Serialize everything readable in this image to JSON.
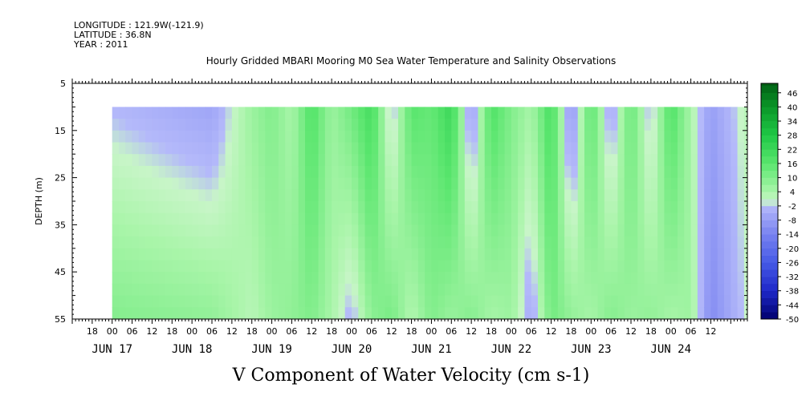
{
  "header": {
    "longitude": "LONGITUDE : 121.9W(-121.9)",
    "latitude": "LATITUDE : 36.8N",
    "year": "YEAR : 2011"
  },
  "chart_data": {
    "type": "heatmap",
    "title": "Hourly Gridded MBARI Mooring M0 Sea Water Temperature and Salinity Observations",
    "xlabel": "V Component of Water Velocity (cm s-1)",
    "ylabel": "DEPTH (m)",
    "y_reversed": true,
    "ylim": [
      55,
      5
    ],
    "y_ticks": [
      5,
      15,
      25,
      35,
      45,
      55
    ],
    "data_depth_range": [
      10,
      55
    ],
    "x_range_hours": [
      "2011-06-16 12:00",
      "2011-06-24 23:00"
    ],
    "data_time_range": [
      "2011-06-17 00:00",
      "2011-06-24 23:00"
    ],
    "x_hour_ticks": [
      "18",
      "00",
      "06",
      "12",
      "18",
      "00",
      "06",
      "12",
      "18",
      "00",
      "06",
      "12",
      "18",
      "00",
      "06",
      "12",
      "18",
      "00",
      "06",
      "12",
      "18",
      "00",
      "06",
      "12",
      "18",
      "00",
      "06",
      "12",
      "18",
      "00",
      "06",
      "12"
    ],
    "x_hour_tick_times": [
      "2011-06-16 18:00",
      "2011-06-17 00:00",
      "2011-06-17 06:00",
      "2011-06-17 12:00",
      "2011-06-17 18:00",
      "2011-06-18 00:00",
      "2011-06-18 06:00",
      "2011-06-18 12:00",
      "2011-06-18 18:00",
      "2011-06-19 00:00",
      "2011-06-19 06:00",
      "2011-06-19 12:00",
      "2011-06-19 18:00",
      "2011-06-20 00:00",
      "2011-06-20 06:00",
      "2011-06-20 12:00",
      "2011-06-20 18:00",
      "2011-06-21 00:00",
      "2011-06-21 06:00",
      "2011-06-21 12:00",
      "2011-06-21 18:00",
      "2011-06-22 00:00",
      "2011-06-22 06:00",
      "2011-06-22 12:00",
      "2011-06-22 18:00",
      "2011-06-23 00:00",
      "2011-06-23 06:00",
      "2011-06-23 12:00",
      "2011-06-23 18:00",
      "2011-06-24 00:00",
      "2011-06-24 06:00",
      "2011-06-24 12:00"
    ],
    "x_date_labels": [
      {
        "label": "JUN 17",
        "time": "2011-06-17 00:00"
      },
      {
        "label": "JUN 18",
        "time": "2011-06-18 00:00"
      },
      {
        "label": "JUN 19",
        "time": "2011-06-19 00:00"
      },
      {
        "label": "JUN 20",
        "time": "2011-06-20 00:00"
      },
      {
        "label": "JUN 21",
        "time": "2011-06-21 00:00"
      },
      {
        "label": "JUN 22",
        "time": "2011-06-22 00:00"
      },
      {
        "label": "JUN 23",
        "time": "2011-06-23 00:00"
      },
      {
        "label": "JUN 24",
        "time": "2011-06-24 00:00"
      }
    ],
    "colorbar": {
      "min": -50,
      "max": 50,
      "step": 3,
      "labels": [
        46,
        40,
        34,
        28,
        22,
        16,
        10,
        4,
        -2,
        -8,
        -14,
        -20,
        -26,
        -32,
        -38,
        -44,
        -50
      ]
    },
    "v_velocity_profiles": [
      {
        "time": "2011-06-17 00:00",
        "surface": -2,
        "bottom": 10
      },
      {
        "time": "2011-06-18 06:00",
        "surface": -6,
        "bottom": 8
      },
      {
        "time": "2011-06-18 18:00",
        "surface": 6,
        "bottom": 2
      },
      {
        "time": "2011-06-19 00:00",
        "surface": 10,
        "bottom": 6
      },
      {
        "time": "2011-06-19 06:00",
        "surface": 4,
        "bottom": 8
      },
      {
        "time": "2011-06-19 12:00",
        "surface": 18,
        "bottom": 10
      },
      {
        "time": "2011-06-19 18:00",
        "surface": 6,
        "bottom": 4
      },
      {
        "time": "2011-06-20 00:00",
        "surface": 12,
        "bottom": -4
      },
      {
        "time": "2011-06-20 06:00",
        "surface": 20,
        "bottom": 8
      },
      {
        "time": "2011-06-20 12:00",
        "surface": -4,
        "bottom": 12
      },
      {
        "time": "2011-06-20 18:00",
        "surface": 16,
        "bottom": 2
      },
      {
        "time": "2011-06-21 00:00",
        "surface": 14,
        "bottom": 10
      },
      {
        "time": "2011-06-21 06:00",
        "surface": 22,
        "bottom": 6
      },
      {
        "time": "2011-06-21 12:00",
        "surface": -8,
        "bottom": 10
      },
      {
        "time": "2011-06-21 18:00",
        "surface": 18,
        "bottom": 4
      },
      {
        "time": "2011-06-22 00:00",
        "surface": 10,
        "bottom": 6
      },
      {
        "time": "2011-06-22 06:00",
        "surface": 4,
        "bottom": -6
      },
      {
        "time": "2011-06-22 12:00",
        "surface": 20,
        "bottom": 12
      },
      {
        "time": "2011-06-22 18:00",
        "surface": -10,
        "bottom": 8
      },
      {
        "time": "2011-06-23 00:00",
        "surface": 16,
        "bottom": 4
      },
      {
        "time": "2011-06-23 06:00",
        "surface": -6,
        "bottom": 10
      },
      {
        "time": "2011-06-23 12:00",
        "surface": 14,
        "bottom": 6
      },
      {
        "time": "2011-06-23 18:00",
        "surface": -4,
        "bottom": 8
      },
      {
        "time": "2011-06-24 00:00",
        "surface": 18,
        "bottom": 4
      },
      {
        "time": "2011-06-24 06:00",
        "surface": 4,
        "bottom": 6
      },
      {
        "time": "2011-06-24 12:00",
        "surface": -8,
        "bottom": -12
      },
      {
        "time": "2011-06-24 23:00",
        "surface": 2,
        "bottom": 0
      }
    ]
  }
}
